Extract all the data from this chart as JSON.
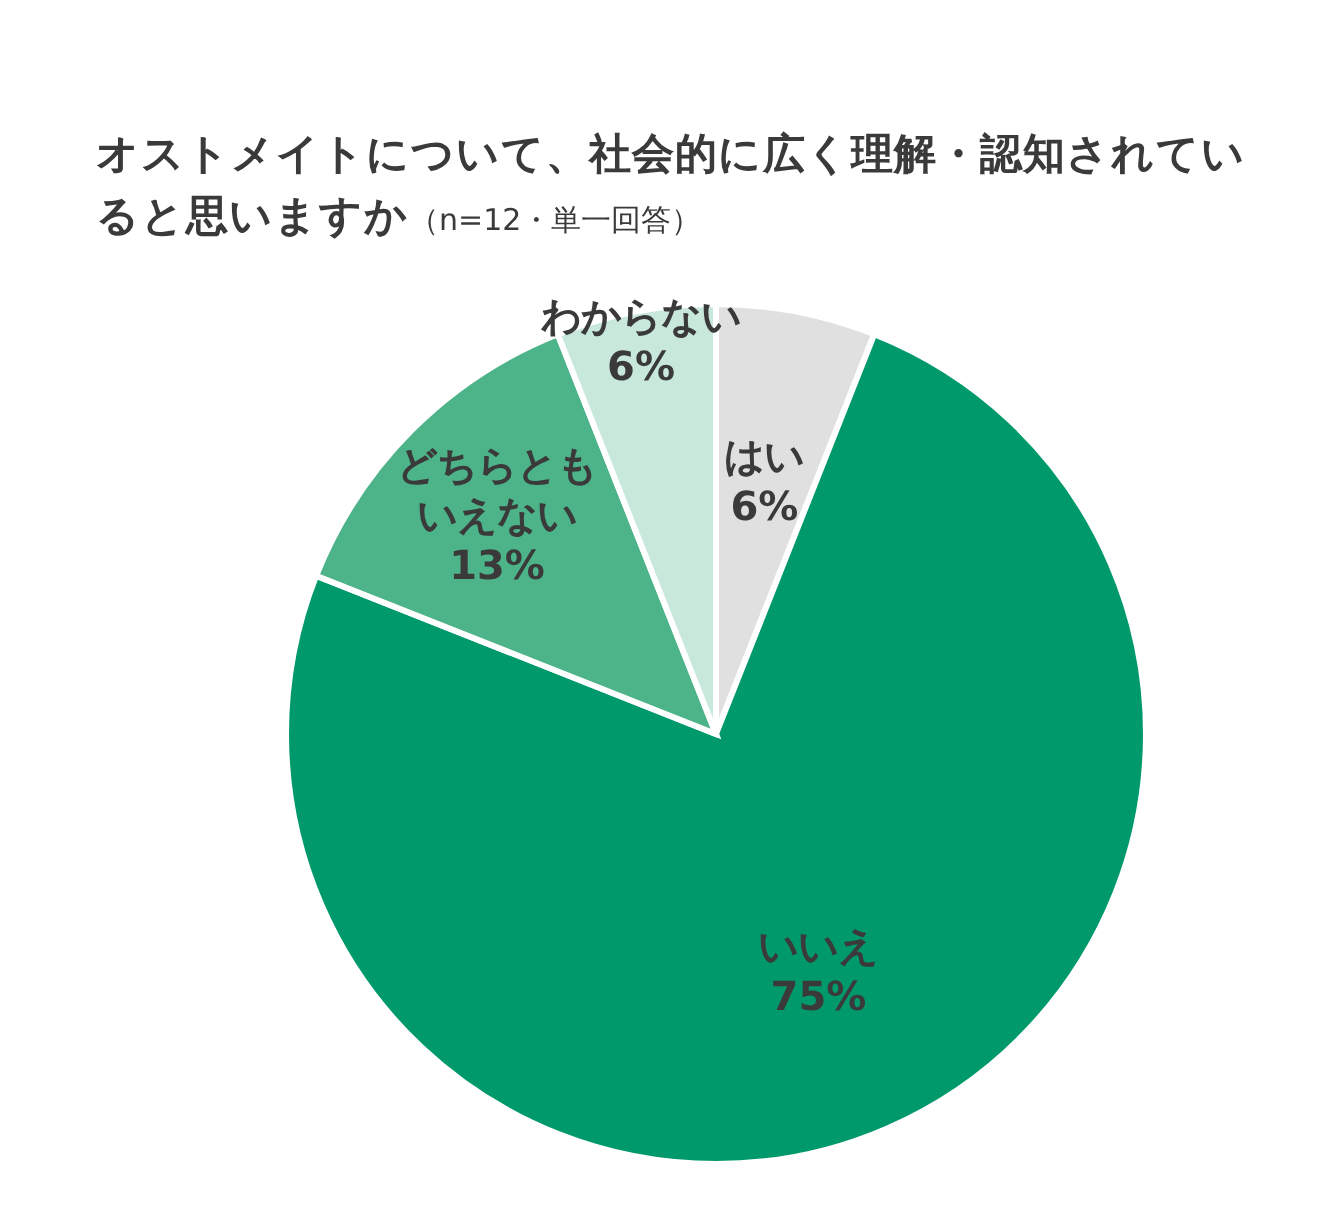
{
  "chart_data": {
    "type": "pie",
    "title": "オストメイトについて、社会的に広く理解・認知されていると思いますか",
    "subtitle": "（n=12・単一回答）",
    "categories": [
      "はい",
      "いいえ",
      "どちらともいえない",
      "わからない"
    ],
    "values": [
      6,
      75,
      13,
      6
    ],
    "colors": [
      "#e0e0e0",
      "#00996b",
      "#4db388",
      "#c9e8dc"
    ],
    "value_labels": [
      "6%",
      "75%",
      "13%",
      "6%"
    ],
    "legend": false
  }
}
